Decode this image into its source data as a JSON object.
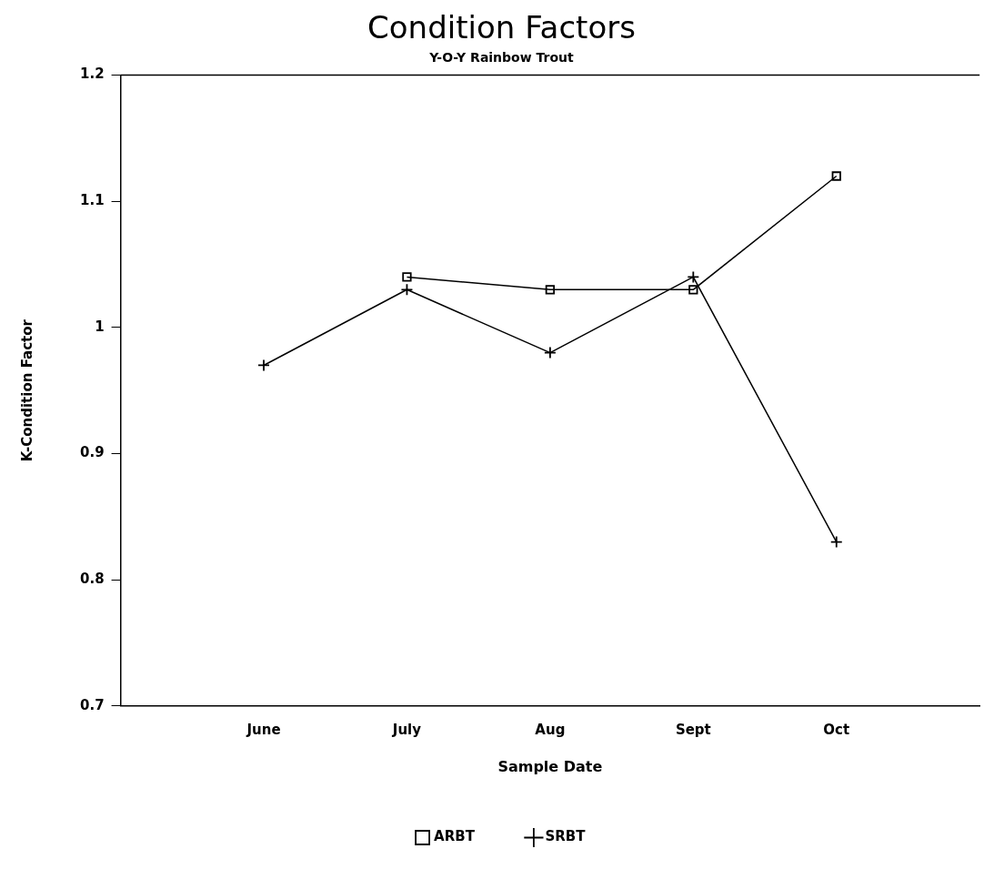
{
  "chart_data": {
    "type": "line",
    "title": "Condition Factors",
    "subtitle": "Y-O-Y Rainbow Trout",
    "xlabel": "Sample Date",
    "ylabel": "K-Condition Factor",
    "categories": [
      "June",
      "July",
      "Aug",
      "Sept",
      "Oct"
    ],
    "series": [
      {
        "name": "ARBT",
        "color": "#000000",
        "marker": "square",
        "values": [
          null,
          1.04,
          1.03,
          1.03,
          1.12
        ]
      },
      {
        "name": "SRBT",
        "color": "#000000",
        "marker": "cross",
        "values": [
          0.97,
          1.03,
          0.98,
          1.04,
          0.83
        ]
      }
    ],
    "ylim": [
      0.7,
      1.2
    ],
    "yticks": [
      0.7,
      0.8,
      0.9,
      1,
      1.1,
      1.2
    ],
    "grid": false,
    "legend": "bottom",
    "line_style": "solid"
  }
}
